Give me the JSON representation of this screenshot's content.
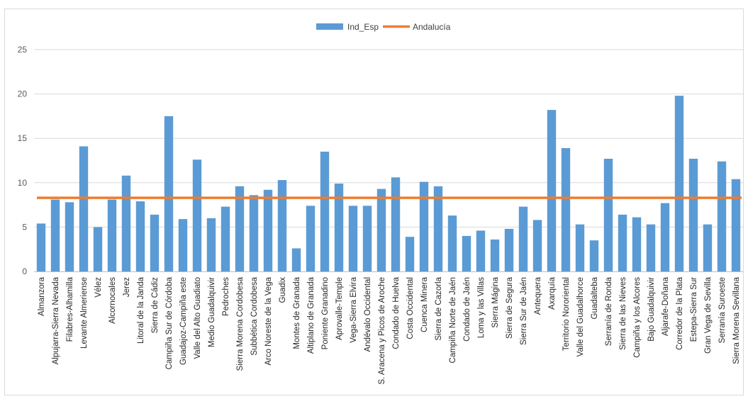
{
  "chart_data": {
    "type": "bar",
    "title": "",
    "xlabel": "",
    "ylabel": "",
    "ylim": [
      0,
      25
    ],
    "yticks": [
      "0",
      "5",
      "10",
      "15",
      "20",
      "25"
    ],
    "grid": true,
    "legend_position": "top-center",
    "categories": [
      "Almanzora",
      "Alpujarra-Sierra Nevada",
      "Filabres-Alhamilla",
      "Levante Almeriense",
      "Vélez",
      "Alcornocales",
      "Jerez",
      "Litoral de la Janda",
      "Sierra de Cádiz",
      "Campiña Sur de Córdoba",
      "Guadajoz-Campiña este",
      "Valle del Alto Guadiato",
      "Medio Guadalquivir",
      "Pedroches",
      "Sierra Morena Cordobesa",
      "Subbética Cordobesa",
      "Arco Noreste de la Vega",
      "Guadix",
      "Montes de Granada",
      "Altiplano de Granada",
      "Poniente Granadino",
      "Aprovalle-Temple",
      "Vega-Sierra Elvira",
      "Andévalo Occidental",
      "S. Aracena y Picos de Aroche",
      "Condado de Huelva",
      "Costa Occidental",
      "Cuenca Minera",
      "Sierra de Cazorla",
      "Campiña Norte de Jaén",
      "Condado de Jaén",
      "Loma y las Villas",
      "Sierra Mágina",
      "Sierra de Segura",
      "Sierra Sur de Jaén",
      "Antequera",
      "Axarquía",
      "Territorio  Nororiental",
      "Valle del Guadalhorce",
      "Guadalteba",
      "Serranía de Ronda",
      "Sierra de las Nieves",
      "Campiña y los Alcores",
      "Bajo Guadalquivir",
      "Aljarafe-Doñana",
      "Corredor de la Plata",
      "Estepa-Sierra Sur",
      "Gran Vega de Sevilla",
      "Serranía Suroeste",
      "Sierra Morena Sevillana"
    ],
    "series": [
      {
        "name": "Ind_Esp",
        "type": "bar",
        "color": "#5B9BD5",
        "values": [
          5.4,
          8.1,
          7.8,
          14.1,
          5.0,
          8.1,
          10.8,
          7.9,
          6.4,
          17.5,
          5.9,
          12.6,
          6.0,
          7.3,
          9.6,
          8.6,
          9.2,
          10.3,
          2.6,
          7.4,
          13.5,
          9.9,
          7.4,
          7.4,
          9.3,
          10.6,
          3.9,
          10.1,
          9.6,
          6.3,
          4.0,
          4.6,
          3.6,
          4.8,
          7.3,
          5.8,
          18.2,
          13.9,
          5.3,
          3.5,
          12.7,
          6.4,
          6.1,
          5.3,
          7.7,
          19.8,
          12.7,
          5.3,
          12.4,
          10.4
        ]
      },
      {
        "name": "Andalucía",
        "type": "line",
        "color": "#ED7D31",
        "value": 8.3
      }
    ]
  }
}
